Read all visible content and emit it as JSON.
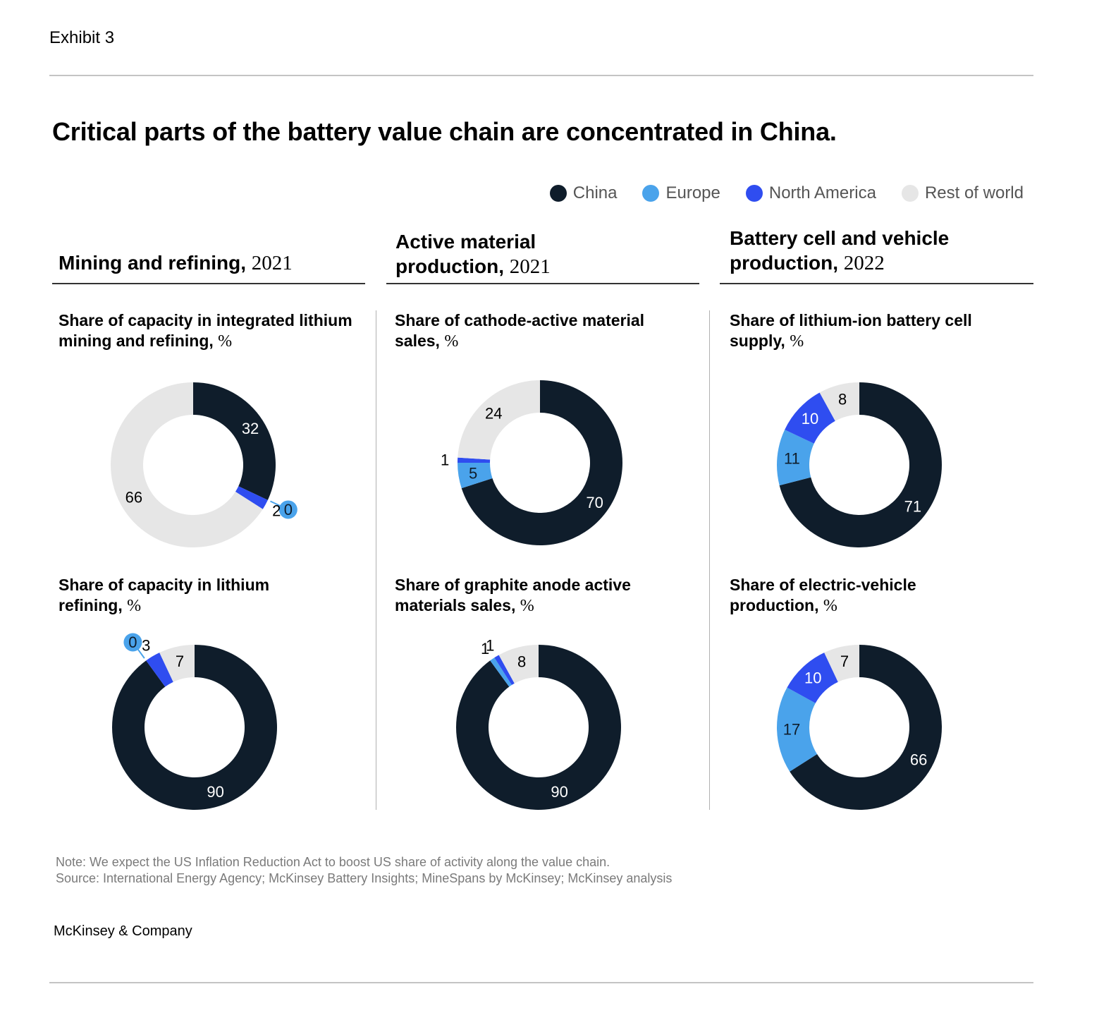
{
  "exhibit": "Exhibit 3",
  "title": "Critical parts of the battery value chain are concentrated in China.",
  "legend": [
    {
      "label": "China",
      "color": "#0f1d2b"
    },
    {
      "label": "Europe",
      "color": "#4aa3eb"
    },
    {
      "label": "North America",
      "color": "#2f4df0"
    },
    {
      "label": "Rest of world",
      "color": "#e6e6e6"
    }
  ],
  "sections": [
    {
      "title": "Mining and refining,",
      "year": "2021"
    },
    {
      "title": "Active material production,",
      "year": "2021"
    },
    {
      "title": "Battery cell and vehicle production,",
      "year": "2022"
    }
  ],
  "chart_data": [
    {
      "type": "pie",
      "title": "Share of capacity in integrated lithium mining and refining,",
      "unit": "%",
      "categories": [
        "China",
        "Europe",
        "North America",
        "Rest of world"
      ],
      "values": [
        32,
        0,
        2,
        66
      ],
      "labels": [
        "32",
        "0",
        "2",
        "66"
      ]
    },
    {
      "type": "pie",
      "title": "Share of capacity in lithium refining,",
      "unit": "%",
      "categories": [
        "China",
        "Europe",
        "North America",
        "Rest of world"
      ],
      "values": [
        90,
        0,
        3,
        7
      ],
      "labels": [
        "90",
        "0",
        "3",
        "7"
      ]
    },
    {
      "type": "pie",
      "title": "Share of cathode-active material sales,",
      "unit": "%",
      "categories": [
        "China",
        "Europe",
        "North America",
        "Rest of world"
      ],
      "values": [
        70,
        5,
        1,
        24
      ],
      "labels": [
        "70",
        "5",
        "1",
        "24"
      ]
    },
    {
      "type": "pie",
      "title": "Share of graphite anode active materials sales,",
      "unit": "%",
      "categories": [
        "China",
        "Europe",
        "North America",
        "Rest of world"
      ],
      "values": [
        90,
        1,
        1,
        8
      ],
      "labels": [
        "90",
        "1",
        "1",
        "8"
      ]
    },
    {
      "type": "pie",
      "title": "Share of lithium-ion battery cell supply,",
      "unit": "%",
      "categories": [
        "China",
        "Europe",
        "North America",
        "Rest of world"
      ],
      "values": [
        71,
        11,
        10,
        8
      ],
      "labels": [
        "71",
        "11",
        "10",
        "8"
      ]
    },
    {
      "type": "pie",
      "title": "Share of electric-vehicle production,",
      "unit": "%",
      "categories": [
        "China",
        "Europe",
        "North America",
        "Rest of world"
      ],
      "values": [
        66,
        17,
        10,
        7
      ],
      "labels": [
        "66",
        "17",
        "10",
        "7"
      ]
    }
  ],
  "note": "Note: We expect the US Inflation Reduction Act to boost US share of activity along the value chain.",
  "source": "Source: International Energy Agency; McKinsey Battery Insights; MineSpans by McKinsey; McKinsey analysis",
  "brand": "McKinsey & Company"
}
